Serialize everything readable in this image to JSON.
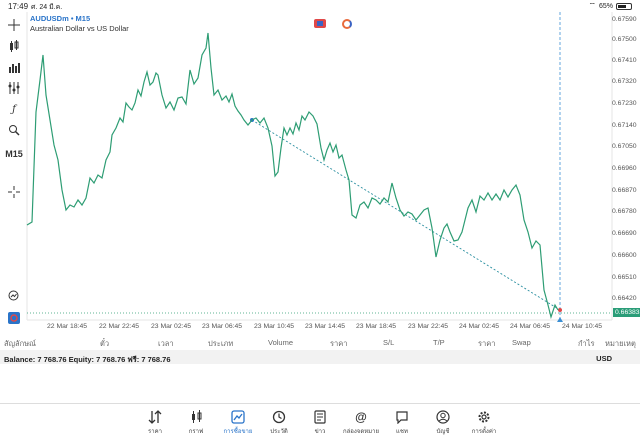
{
  "status_bar": {
    "time": "17:49",
    "date": "ศ. 24 มี.ค.",
    "battery": "65%"
  },
  "symbol": {
    "name": "AUDUSDm",
    "timeframe": "M15",
    "description": "Australian Dollar vs US Dollar",
    "name_line": "AUDUSDm • M15"
  },
  "toolbar": {
    "timeframe_label": "M15"
  },
  "price_axis": [
    "0.67590",
    "0.67500",
    "0.67410",
    "0.67320",
    "0.67230",
    "0.67140",
    "0.67050",
    "0.66960",
    "0.66870",
    "0.66780",
    "0.66690",
    "0.66600",
    "0.66510",
    "0.66420"
  ],
  "current_price": "0.66383",
  "time_axis": [
    "22 Mar 18:45",
    "22 Mar 22:45",
    "23 Mar 02:45",
    "23 Mar 06:45",
    "23 Mar 10:45",
    "23 Mar 14:45",
    "23 Mar 18:45",
    "23 Mar 22:45",
    "24 Mar 02:45",
    "24 Mar 06:45",
    "24 Mar 10:45"
  ],
  "table_headers": [
    "สัญลักษณ์",
    "ตั๋ว",
    "เวลา",
    "ประเภท",
    "Volume",
    "ราคา",
    "S/L",
    "T/P",
    "ราคา",
    "Swap",
    "กำไร",
    "หมายเหตุ"
  ],
  "account": {
    "summary": "Balance: 7 768.76 Equity: 7 768.76 ฟรี: 7 768.76",
    "currency": "USD"
  },
  "nav": [
    {
      "label": "ราคา",
      "icon": "quotes-icon"
    },
    {
      "label": "กราฟ",
      "icon": "chart-icon"
    },
    {
      "label": "การซื้อขาย",
      "icon": "trade-icon",
      "active": true
    },
    {
      "label": "ประวัติ",
      "icon": "history-icon"
    },
    {
      "label": "ข่าว",
      "icon": "news-icon"
    },
    {
      "label": "กล่องจดหมาย",
      "icon": "mailbox-icon"
    },
    {
      "label": "แชท",
      "icon": "chat-icon"
    },
    {
      "label": "บัญชี",
      "icon": "account-icon"
    },
    {
      "label": "การตั้งค่า",
      "icon": "settings-icon"
    }
  ],
  "colors": {
    "line": "#2e9d74",
    "accent": "#2a74c9",
    "trendline": "#2a8fa0",
    "crosshair": "#3b8fd4"
  }
}
